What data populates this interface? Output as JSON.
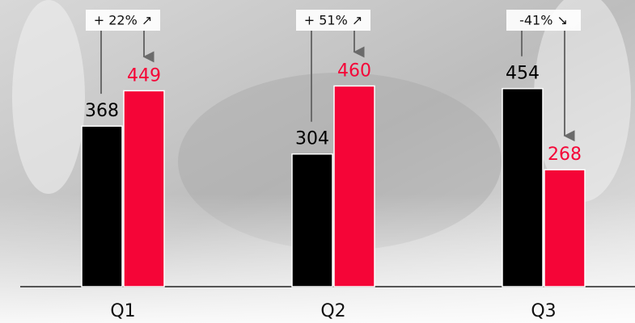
{
  "chart_data": {
    "type": "bar",
    "categories": [
      "Q1",
      "Q2",
      "Q3"
    ],
    "series": [
      {
        "color": "#000000",
        "values": [
          368,
          304,
          454
        ]
      },
      {
        "color": "#f50537",
        "values": [
          449,
          460,
          268
        ]
      }
    ],
    "annotations": [
      "+ 22% ↗",
      "+ 51% ↗",
      "-41% ↘"
    ],
    "ylim": [
      0,
      657
    ]
  }
}
